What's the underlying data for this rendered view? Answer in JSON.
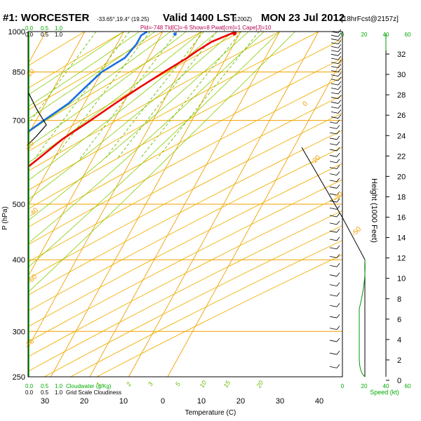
{
  "title": {
    "station": "#1: WORCESTER",
    "coords": "-33.65°,19.4° (19.25)",
    "valid": "Valid 1400 LST",
    "utc": "(1200Z)",
    "date": "MON 23 Jul 2012",
    "fcst": "[18hrFcst@2157z]",
    "indices": "Pld=-748 Tld[C]=-6 Show=8 Pwat[cm]=1 Cape[J]=10"
  },
  "colors": {
    "isotherm": "#f0a000",
    "dry_adiabat": "#f0b000",
    "moist_adiabat": "#88cc00",
    "mixing_ratio": "#66bb00",
    "temperature": "#ee0000",
    "dewpoint": "#1a6ee6",
    "wind_profile": "#009900",
    "barb": "#000000",
    "green_label": "#00aa00",
    "left_panel": "#000000"
  },
  "top_left_scale": {
    "row1": [
      "0.0",
      "0.5",
      "1.0"
    ],
    "row2": [
      "0.0",
      "0.5",
      "1.0"
    ]
  },
  "bottom_left_scale": {
    "row1": [
      "0.0",
      "0.5",
      "1.0"
    ],
    "row1_label": "Cloudwater (g/Kg)",
    "row2": [
      "0.0",
      "0.5",
      "1.0"
    ],
    "row2_label": "Grid Scale Cloudiness"
  },
  "x_ticks": [
    "30",
    "20",
    "10",
    "0",
    "10",
    "20",
    "30",
    "40"
  ],
  "xlabel": "Temperature (C)",
  "p_ticks": [
    "250",
    "300",
    "400",
    "500",
    "700",
    "850",
    "1000"
  ],
  "ylabel": "P (hPa)",
  "height_label": "Height (1000 Feet)",
  "height_ticks": [
    "32",
    "30",
    "28",
    "26",
    "24",
    "22",
    "20",
    "18",
    "16",
    "14",
    "12",
    "10",
    "8",
    "6",
    "4",
    "2",
    "0"
  ],
  "wind_axis_top": [
    "0",
    "20",
    "40",
    "60"
  ],
  "wind_axis_bottom": [
    "0",
    "20",
    "40",
    "60"
  ],
  "speed_label": "Speed (kt)",
  "mixing_ratio_labels": [
    "1",
    "2",
    "3",
    "5",
    "10",
    "15",
    "20"
  ],
  "isotherm_labels": [
    "10",
    "0",
    "-10",
    "-20",
    "-30",
    "-40",
    "-50",
    "-60",
    "-70"
  ],
  "chart_data": {
    "type": "skew-t",
    "x_unit": "Temperature (C)",
    "y_unit": "P (hPa)",
    "xlim": [
      -32,
      46
    ],
    "ylim": [
      1000,
      250
    ],
    "y_log": true,
    "temperature": [
      {
        "p": 1000,
        "t": 19
      },
      {
        "p": 985,
        "t": 17
      },
      {
        "p": 960,
        "t": 14
      },
      {
        "p": 925,
        "t": 11.5
      },
      {
        "p": 900,
        "t": 10
      },
      {
        "p": 850,
        "t": 6
      },
      {
        "p": 800,
        "t": 2
      },
      {
        "p": 750,
        "t": -2
      },
      {
        "p": 700,
        "t": -6
      },
      {
        "p": 650,
        "t": -10.5
      },
      {
        "p": 600,
        "t": -14
      },
      {
        "p": 550,
        "t": -18
      },
      {
        "p": 500,
        "t": -23
      },
      {
        "p": 450,
        "t": -29
      },
      {
        "p": 400,
        "t": -35
      },
      {
        "p": 350,
        "t": -41.5
      },
      {
        "p": 300,
        "t": -48.5
      },
      {
        "p": 275,
        "t": -52
      },
      {
        "p": 260,
        "t": -54
      }
    ],
    "dewpoint": [
      {
        "p": 1000,
        "t": -4
      },
      {
        "p": 985,
        "t": -5
      },
      {
        "p": 950,
        "t": -5
      },
      {
        "p": 900,
        "t": -6
      },
      {
        "p": 850,
        "t": -10
      },
      {
        "p": 800,
        "t": -12
      },
      {
        "p": 750,
        "t": -14
      },
      {
        "p": 700,
        "t": -18
      },
      {
        "p": 650,
        "t": -22
      },
      {
        "p": 600,
        "t": -30
      },
      {
        "p": 550,
        "t": -45
      },
      {
        "p": 500,
        "t": -65
      },
      {
        "p": 450,
        "t": -60
      },
      {
        "p": 400,
        "t": -56
      },
      {
        "p": 350,
        "t": -63
      },
      {
        "p": 300,
        "t": -74
      },
      {
        "p": 275,
        "t": -80
      },
      {
        "p": 260,
        "t": -82
      }
    ],
    "surface_dewpoint_marker": {
      "p": 990,
      "t": 3.5
    },
    "surface_temperature_marker": {
      "p": 992,
      "t": 18.7
    }
  }
}
